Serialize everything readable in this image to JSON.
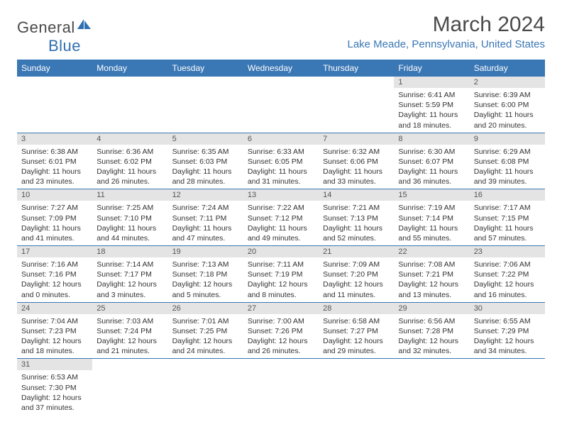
{
  "logo": {
    "text1": "Genera",
    "text2": "l",
    "text3": "Blue"
  },
  "title": "March 2024",
  "location": "Lake Meade, Pennsylvania, United States",
  "colors": {
    "header_bg": "#3a77b5",
    "header_text": "#ffffff",
    "daynum_bg": "#e4e4e4",
    "logo_gray": "#4a4a4a",
    "logo_blue": "#2f6fb0"
  },
  "weekdays": [
    "Sunday",
    "Monday",
    "Tuesday",
    "Wednesday",
    "Thursday",
    "Friday",
    "Saturday"
  ],
  "weeks": [
    [
      null,
      null,
      null,
      null,
      null,
      {
        "n": "1",
        "sr": "Sunrise: 6:41 AM",
        "ss": "Sunset: 5:59 PM",
        "d1": "Daylight: 11 hours",
        "d2": "and 18 minutes."
      },
      {
        "n": "2",
        "sr": "Sunrise: 6:39 AM",
        "ss": "Sunset: 6:00 PM",
        "d1": "Daylight: 11 hours",
        "d2": "and 20 minutes."
      }
    ],
    [
      {
        "n": "3",
        "sr": "Sunrise: 6:38 AM",
        "ss": "Sunset: 6:01 PM",
        "d1": "Daylight: 11 hours",
        "d2": "and 23 minutes."
      },
      {
        "n": "4",
        "sr": "Sunrise: 6:36 AM",
        "ss": "Sunset: 6:02 PM",
        "d1": "Daylight: 11 hours",
        "d2": "and 26 minutes."
      },
      {
        "n": "5",
        "sr": "Sunrise: 6:35 AM",
        "ss": "Sunset: 6:03 PM",
        "d1": "Daylight: 11 hours",
        "d2": "and 28 minutes."
      },
      {
        "n": "6",
        "sr": "Sunrise: 6:33 AM",
        "ss": "Sunset: 6:05 PM",
        "d1": "Daylight: 11 hours",
        "d2": "and 31 minutes."
      },
      {
        "n": "7",
        "sr": "Sunrise: 6:32 AM",
        "ss": "Sunset: 6:06 PM",
        "d1": "Daylight: 11 hours",
        "d2": "and 33 minutes."
      },
      {
        "n": "8",
        "sr": "Sunrise: 6:30 AM",
        "ss": "Sunset: 6:07 PM",
        "d1": "Daylight: 11 hours",
        "d2": "and 36 minutes."
      },
      {
        "n": "9",
        "sr": "Sunrise: 6:29 AM",
        "ss": "Sunset: 6:08 PM",
        "d1": "Daylight: 11 hours",
        "d2": "and 39 minutes."
      }
    ],
    [
      {
        "n": "10",
        "sr": "Sunrise: 7:27 AM",
        "ss": "Sunset: 7:09 PM",
        "d1": "Daylight: 11 hours",
        "d2": "and 41 minutes."
      },
      {
        "n": "11",
        "sr": "Sunrise: 7:25 AM",
        "ss": "Sunset: 7:10 PM",
        "d1": "Daylight: 11 hours",
        "d2": "and 44 minutes."
      },
      {
        "n": "12",
        "sr": "Sunrise: 7:24 AM",
        "ss": "Sunset: 7:11 PM",
        "d1": "Daylight: 11 hours",
        "d2": "and 47 minutes."
      },
      {
        "n": "13",
        "sr": "Sunrise: 7:22 AM",
        "ss": "Sunset: 7:12 PM",
        "d1": "Daylight: 11 hours",
        "d2": "and 49 minutes."
      },
      {
        "n": "14",
        "sr": "Sunrise: 7:21 AM",
        "ss": "Sunset: 7:13 PM",
        "d1": "Daylight: 11 hours",
        "d2": "and 52 minutes."
      },
      {
        "n": "15",
        "sr": "Sunrise: 7:19 AM",
        "ss": "Sunset: 7:14 PM",
        "d1": "Daylight: 11 hours",
        "d2": "and 55 minutes."
      },
      {
        "n": "16",
        "sr": "Sunrise: 7:17 AM",
        "ss": "Sunset: 7:15 PM",
        "d1": "Daylight: 11 hours",
        "d2": "and 57 minutes."
      }
    ],
    [
      {
        "n": "17",
        "sr": "Sunrise: 7:16 AM",
        "ss": "Sunset: 7:16 PM",
        "d1": "Daylight: 12 hours",
        "d2": "and 0 minutes."
      },
      {
        "n": "18",
        "sr": "Sunrise: 7:14 AM",
        "ss": "Sunset: 7:17 PM",
        "d1": "Daylight: 12 hours",
        "d2": "and 3 minutes."
      },
      {
        "n": "19",
        "sr": "Sunrise: 7:13 AM",
        "ss": "Sunset: 7:18 PM",
        "d1": "Daylight: 12 hours",
        "d2": "and 5 minutes."
      },
      {
        "n": "20",
        "sr": "Sunrise: 7:11 AM",
        "ss": "Sunset: 7:19 PM",
        "d1": "Daylight: 12 hours",
        "d2": "and 8 minutes."
      },
      {
        "n": "21",
        "sr": "Sunrise: 7:09 AM",
        "ss": "Sunset: 7:20 PM",
        "d1": "Daylight: 12 hours",
        "d2": "and 11 minutes."
      },
      {
        "n": "22",
        "sr": "Sunrise: 7:08 AM",
        "ss": "Sunset: 7:21 PM",
        "d1": "Daylight: 12 hours",
        "d2": "and 13 minutes."
      },
      {
        "n": "23",
        "sr": "Sunrise: 7:06 AM",
        "ss": "Sunset: 7:22 PM",
        "d1": "Daylight: 12 hours",
        "d2": "and 16 minutes."
      }
    ],
    [
      {
        "n": "24",
        "sr": "Sunrise: 7:04 AM",
        "ss": "Sunset: 7:23 PM",
        "d1": "Daylight: 12 hours",
        "d2": "and 18 minutes."
      },
      {
        "n": "25",
        "sr": "Sunrise: 7:03 AM",
        "ss": "Sunset: 7:24 PM",
        "d1": "Daylight: 12 hours",
        "d2": "and 21 minutes."
      },
      {
        "n": "26",
        "sr": "Sunrise: 7:01 AM",
        "ss": "Sunset: 7:25 PM",
        "d1": "Daylight: 12 hours",
        "d2": "and 24 minutes."
      },
      {
        "n": "27",
        "sr": "Sunrise: 7:00 AM",
        "ss": "Sunset: 7:26 PM",
        "d1": "Daylight: 12 hours",
        "d2": "and 26 minutes."
      },
      {
        "n": "28",
        "sr": "Sunrise: 6:58 AM",
        "ss": "Sunset: 7:27 PM",
        "d1": "Daylight: 12 hours",
        "d2": "and 29 minutes."
      },
      {
        "n": "29",
        "sr": "Sunrise: 6:56 AM",
        "ss": "Sunset: 7:28 PM",
        "d1": "Daylight: 12 hours",
        "d2": "and 32 minutes."
      },
      {
        "n": "30",
        "sr": "Sunrise: 6:55 AM",
        "ss": "Sunset: 7:29 PM",
        "d1": "Daylight: 12 hours",
        "d2": "and 34 minutes."
      }
    ],
    [
      {
        "n": "31",
        "sr": "Sunrise: 6:53 AM",
        "ss": "Sunset: 7:30 PM",
        "d1": "Daylight: 12 hours",
        "d2": "and 37 minutes."
      },
      null,
      null,
      null,
      null,
      null,
      null
    ]
  ]
}
